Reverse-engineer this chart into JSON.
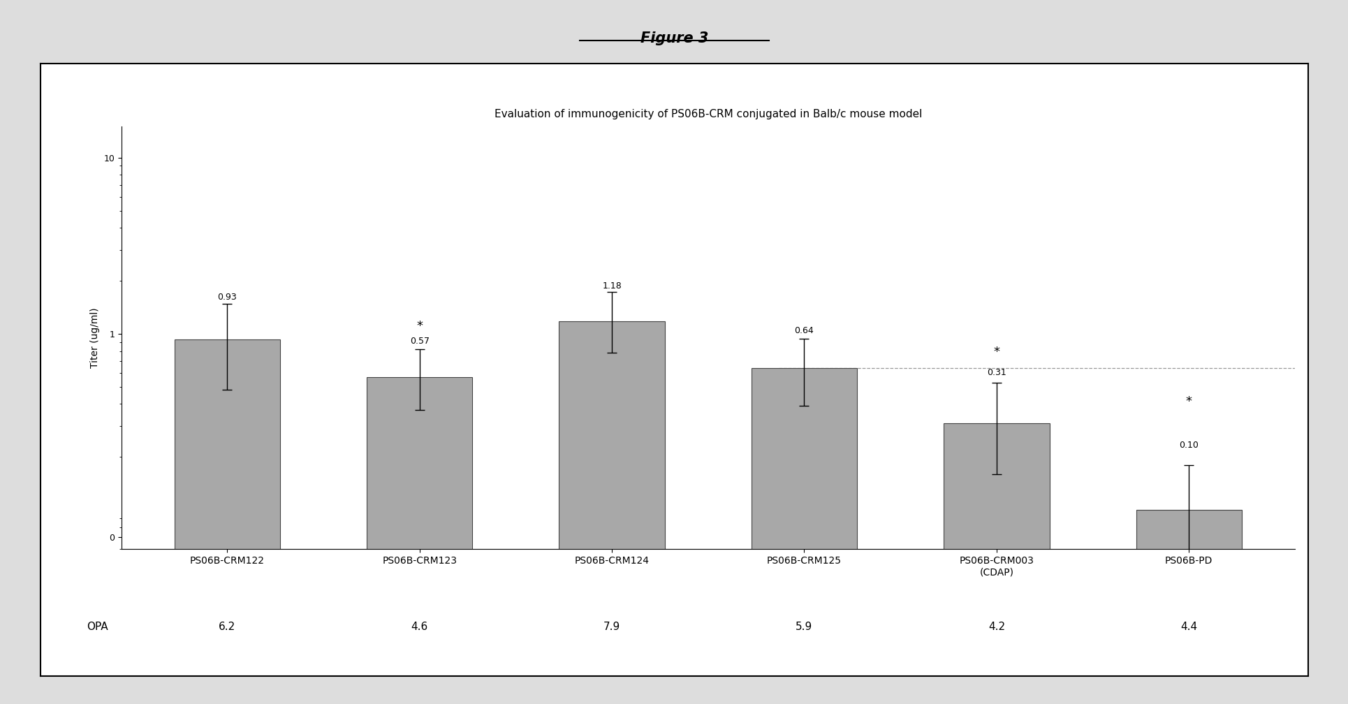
{
  "title": "Evaluation of immunogenicity of PS06B-CRM conjugated in Balb/c mouse model",
  "figure_title": "Figure 3",
  "ylabel": "Titer (ug/ml)",
  "categories": [
    "PS06B-CRM122",
    "PS06B-CRM123",
    "PS06B-CRM124",
    "PS06B-CRM125",
    "PS06B-CRM003\n(CDAP)",
    "PS06B-PD"
  ],
  "values": [
    0.93,
    0.57,
    1.18,
    0.64,
    0.31,
    0.1
  ],
  "errors_upper": [
    0.55,
    0.25,
    0.55,
    0.3,
    0.22,
    0.08
  ],
  "errors_lower": [
    0.45,
    0.2,
    0.4,
    0.25,
    0.15,
    0.05
  ],
  "value_labels": [
    "0.93",
    "0.57",
    "1.18",
    "0.64",
    "0.31",
    "0.10"
  ],
  "opa_values": [
    "6.2",
    "4.6",
    "7.9",
    "5.9",
    "4.2",
    "4.4"
  ],
  "bar_color": "#a8a8a8",
  "bar_edge_color": "#444444",
  "background_color": "#ffffff",
  "outer_bg": "#dddddd",
  "dashed_line_y": 0.64,
  "star_indices": [
    1,
    4,
    5
  ],
  "title_fontsize": 11,
  "label_fontsize": 10,
  "tick_fontsize": 9,
  "opa_fontsize": 11,
  "value_label_fontsize": 9
}
